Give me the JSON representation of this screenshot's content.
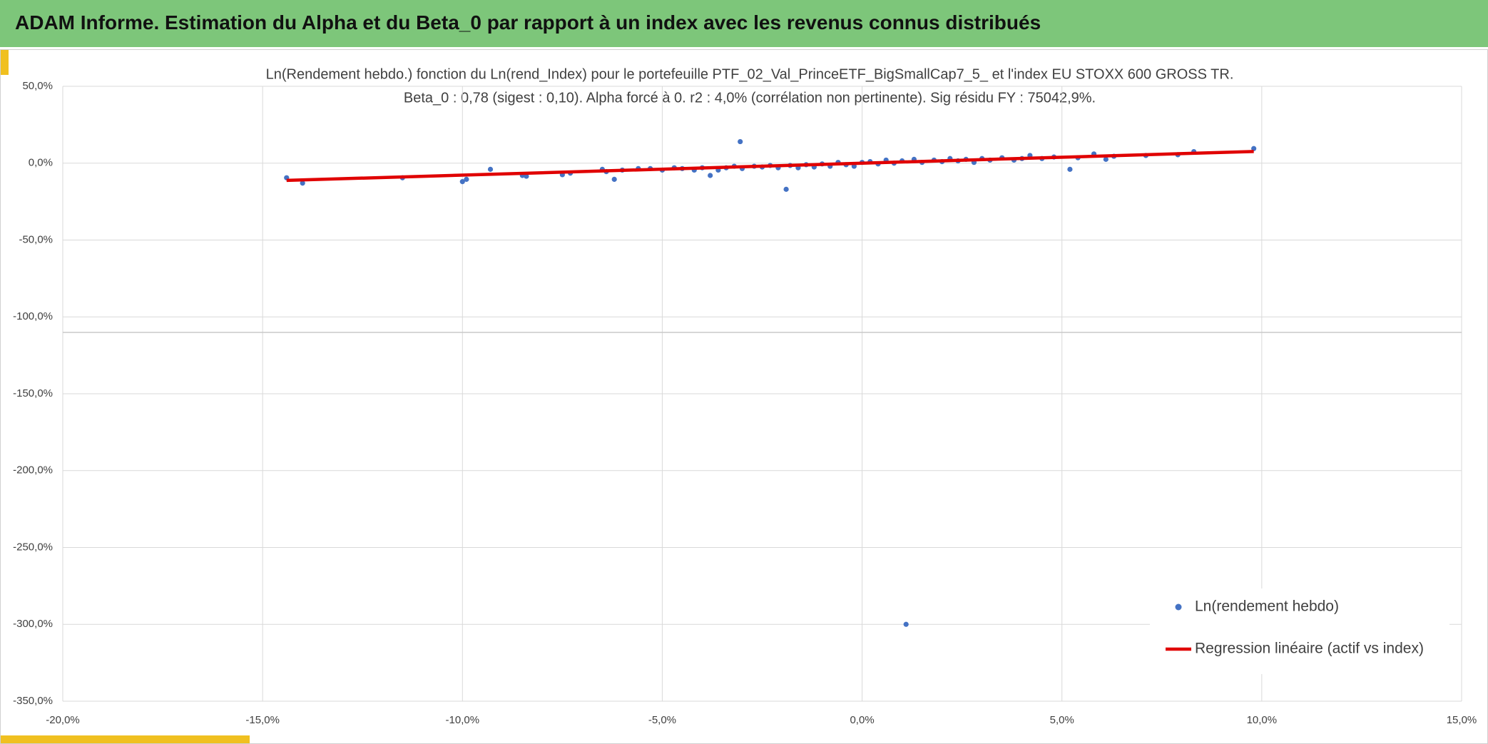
{
  "header": {
    "title": "ADAM Informe. Estimation du Alpha et du Beta_0 par rapport à un index avec les revenus connus distribués"
  },
  "chart_data": {
    "type": "scatter",
    "title": "Ln(Rendement hebdo.) fonction du Ln(rend_Index) pour le portefeuille PTF_02_Val_PrinceETF_BigSmallCap7_5_ et l'index EU STOXX 600 GROSS TR.",
    "subtitle": "Beta_0 : 0,78 (sigest : 0,10). Alpha forcé à 0. r2 : 4,0% (corrélation non pertinente). Sig résidu FY : 75042,9%.",
    "xlim": [
      -20,
      15
    ],
    "ylim": [
      -350,
      50
    ],
    "xticks": [
      {
        "value": -20,
        "label": "-20,0%"
      },
      {
        "value": -15,
        "label": "-15,0%"
      },
      {
        "value": -10,
        "label": "-10,0%"
      },
      {
        "value": -5,
        "label": "-5,0%"
      },
      {
        "value": 0,
        "label": "0,0%"
      },
      {
        "value": 5,
        "label": "5,0%"
      },
      {
        "value": 10,
        "label": "10,0%"
      },
      {
        "value": 15,
        "label": "15,0%"
      }
    ],
    "yticks": [
      {
        "value": 50,
        "label": "50,0%"
      },
      {
        "value": 0,
        "label": "0,0%"
      },
      {
        "value": -50,
        "label": "-50,0%"
      },
      {
        "value": -100,
        "label": "-100,0%"
      },
      {
        "value": -150,
        "label": "-150,0%"
      },
      {
        "value": -200,
        "label": "-200,0%"
      },
      {
        "value": -250,
        "label": "-250,0%"
      },
      {
        "value": -300,
        "label": "-300,0%"
      },
      {
        "value": -350,
        "label": "-350,0%"
      }
    ],
    "grid": true,
    "legend": "bottom-right",
    "series": [
      {
        "name": "Ln(rendement hebdo)",
        "type": "scatter",
        "color": "#4472c4",
        "x": [
          -14.4,
          -14.0,
          -11.5,
          -10.0,
          -9.9,
          -9.3,
          -8.5,
          -8.4,
          -7.5,
          -7.3,
          -6.5,
          -6.4,
          -6.2,
          -6.0,
          -5.6,
          -5.3,
          -5.0,
          -4.7,
          -4.5,
          -4.2,
          -4.0,
          -3.8,
          -3.6,
          -3.4,
          -3.2,
          -3.05,
          -3.0,
          -2.7,
          -2.5,
          -2.3,
          -2.1,
          -1.9,
          -1.8,
          -1.6,
          -1.4,
          -1.2,
          -1.0,
          -0.8,
          -0.6,
          -0.4,
          -0.2,
          0.0,
          0.2,
          0.4,
          0.6,
          0.8,
          1.0,
          1.1,
          1.3,
          1.5,
          1.8,
          2.0,
          2.2,
          2.4,
          2.6,
          2.8,
          3.0,
          3.2,
          3.5,
          3.8,
          4.0,
          4.2,
          4.5,
          4.8,
          5.2,
          5.4,
          5.8,
          6.1,
          6.3,
          7.1,
          7.9,
          8.3,
          9.8
        ],
        "values": [
          -9.5,
          -13,
          -9.5,
          -12,
          -10.5,
          -4,
          -8,
          -8.5,
          -7.5,
          -6.5,
          -4,
          -5.5,
          -10.5,
          -4.5,
          -3.5,
          -3.5,
          -4.5,
          -3,
          -3.5,
          -4.5,
          -3,
          -8,
          -4.5,
          -3,
          -2,
          14,
          -3.5,
          -2,
          -2.5,
          -1.5,
          -3,
          -17,
          -1.5,
          -3,
          -1,
          -2.5,
          -0.5,
          -2,
          0.5,
          -1,
          -2,
          0.5,
          1,
          -0.5,
          2,
          0,
          1.5,
          -300,
          2.5,
          0.5,
          2,
          1,
          3,
          1.5,
          2.5,
          0.5,
          3,
          2,
          3.5,
          2,
          3,
          5,
          3,
          4,
          -4,
          3.5,
          6,
          2.5,
          4.5,
          5,
          5.5,
          7.5,
          9.5
        ]
      },
      {
        "name": "Regression linéaire (actif vs index)",
        "type": "line",
        "color": "#e00000",
        "x": [
          -14.4,
          9.8
        ],
        "values": [
          -11.2,
          7.6
        ]
      }
    ]
  }
}
